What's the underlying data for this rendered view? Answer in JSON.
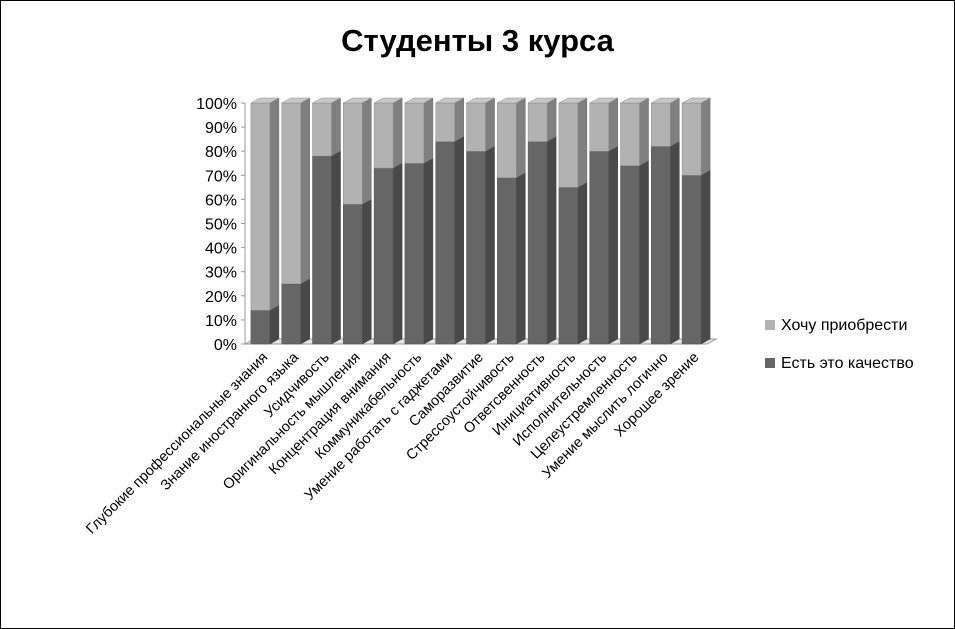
{
  "chart_data": {
    "type": "bar",
    "stacked": true,
    "percent_stacked": true,
    "three_d": true,
    "title": "Студенты 3 курса",
    "categories": [
      "Глубокие профессиональные знания",
      "Знание иностранного языка",
      "Усидчивость",
      "Оригинальность мышления",
      "Концентрация внимания",
      "Коммуникабельность",
      "Умение работать с гаджетами",
      "Саморазвитие",
      "Стрессоустойчивость",
      "Ответсвенность",
      "Инициативность",
      "Исполнительность",
      "Целеустремленность",
      "Умение мыслить логично",
      "Хорошее зрение"
    ],
    "series": [
      {
        "name": "Есть это качество",
        "color": "#666666",
        "values": [
          14,
          25,
          78,
          58,
          73,
          75,
          84,
          80,
          69,
          84,
          65,
          80,
          74,
          82,
          70
        ]
      },
      {
        "name": "Хочу приобрести",
        "color": "#b2b2b2",
        "values": [
          86,
          75,
          22,
          42,
          27,
          25,
          16,
          20,
          31,
          16,
          35,
          20,
          26,
          18,
          30
        ]
      }
    ],
    "y_ticks": [
      "0%",
      "10%",
      "20%",
      "30%",
      "40%",
      "50%",
      "60%",
      "70%",
      "80%",
      "90%",
      "100%"
    ],
    "ylim": [
      0,
      100
    ],
    "grid": false,
    "legend_position": "right",
    "legend_order": [
      "Хочу приобрести",
      "Есть это качество"
    ]
  }
}
